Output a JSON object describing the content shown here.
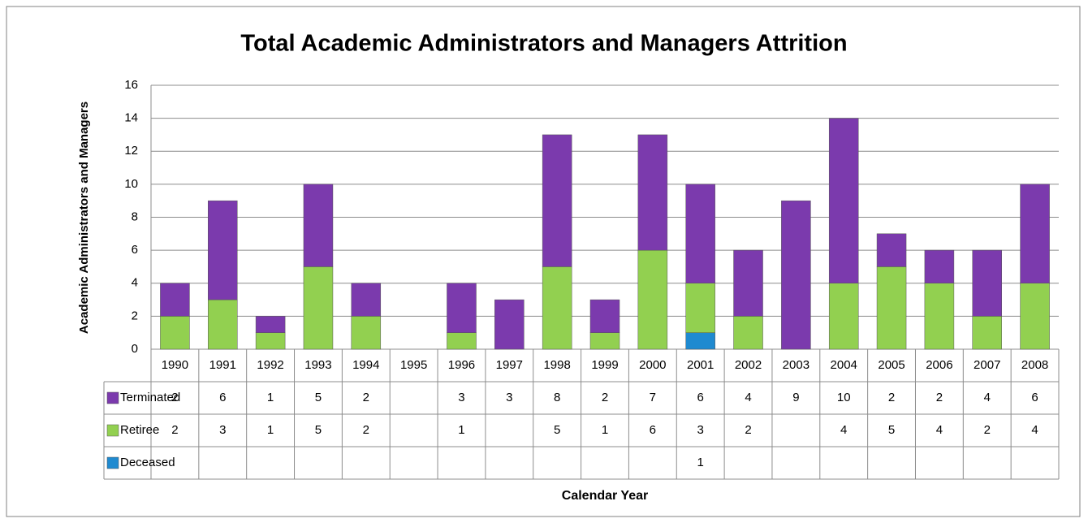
{
  "chart_data": {
    "type": "bar",
    "stacked": true,
    "title": "Total Academic Administrators and Managers Attrition",
    "x_label": "Calendar Year",
    "y_label": "Academic Administrators and Managers",
    "categories": [
      "1990",
      "1991",
      "1992",
      "1993",
      "1994",
      "1995",
      "1996",
      "1997",
      "1998",
      "1999",
      "2000",
      "2001",
      "2002",
      "2003",
      "2004",
      "2005",
      "2006",
      "2007",
      "2008"
    ],
    "series": [
      {
        "name": "Terminated",
        "color": "#7b3aad",
        "values": [
          2,
          6,
          1,
          5,
          2,
          null,
          3,
          3,
          8,
          2,
          7,
          6,
          4,
          9,
          10,
          2,
          2,
          4,
          6
        ]
      },
      {
        "name": "Retiree",
        "color": "#92d050",
        "values": [
          2,
          3,
          1,
          5,
          2,
          null,
          1,
          null,
          5,
          1,
          6,
          3,
          2,
          null,
          4,
          5,
          4,
          2,
          4
        ]
      },
      {
        "name": "Deceased",
        "color": "#1f8ad0",
        "values": [
          null,
          null,
          null,
          null,
          null,
          null,
          null,
          null,
          null,
          null,
          null,
          1,
          null,
          null,
          null,
          null,
          null,
          null,
          null
        ]
      }
    ],
    "ylim": [
      0,
      16
    ],
    "yticks": [
      0,
      2,
      4,
      6,
      8,
      10,
      12,
      14,
      16
    ],
    "grid": true
  }
}
